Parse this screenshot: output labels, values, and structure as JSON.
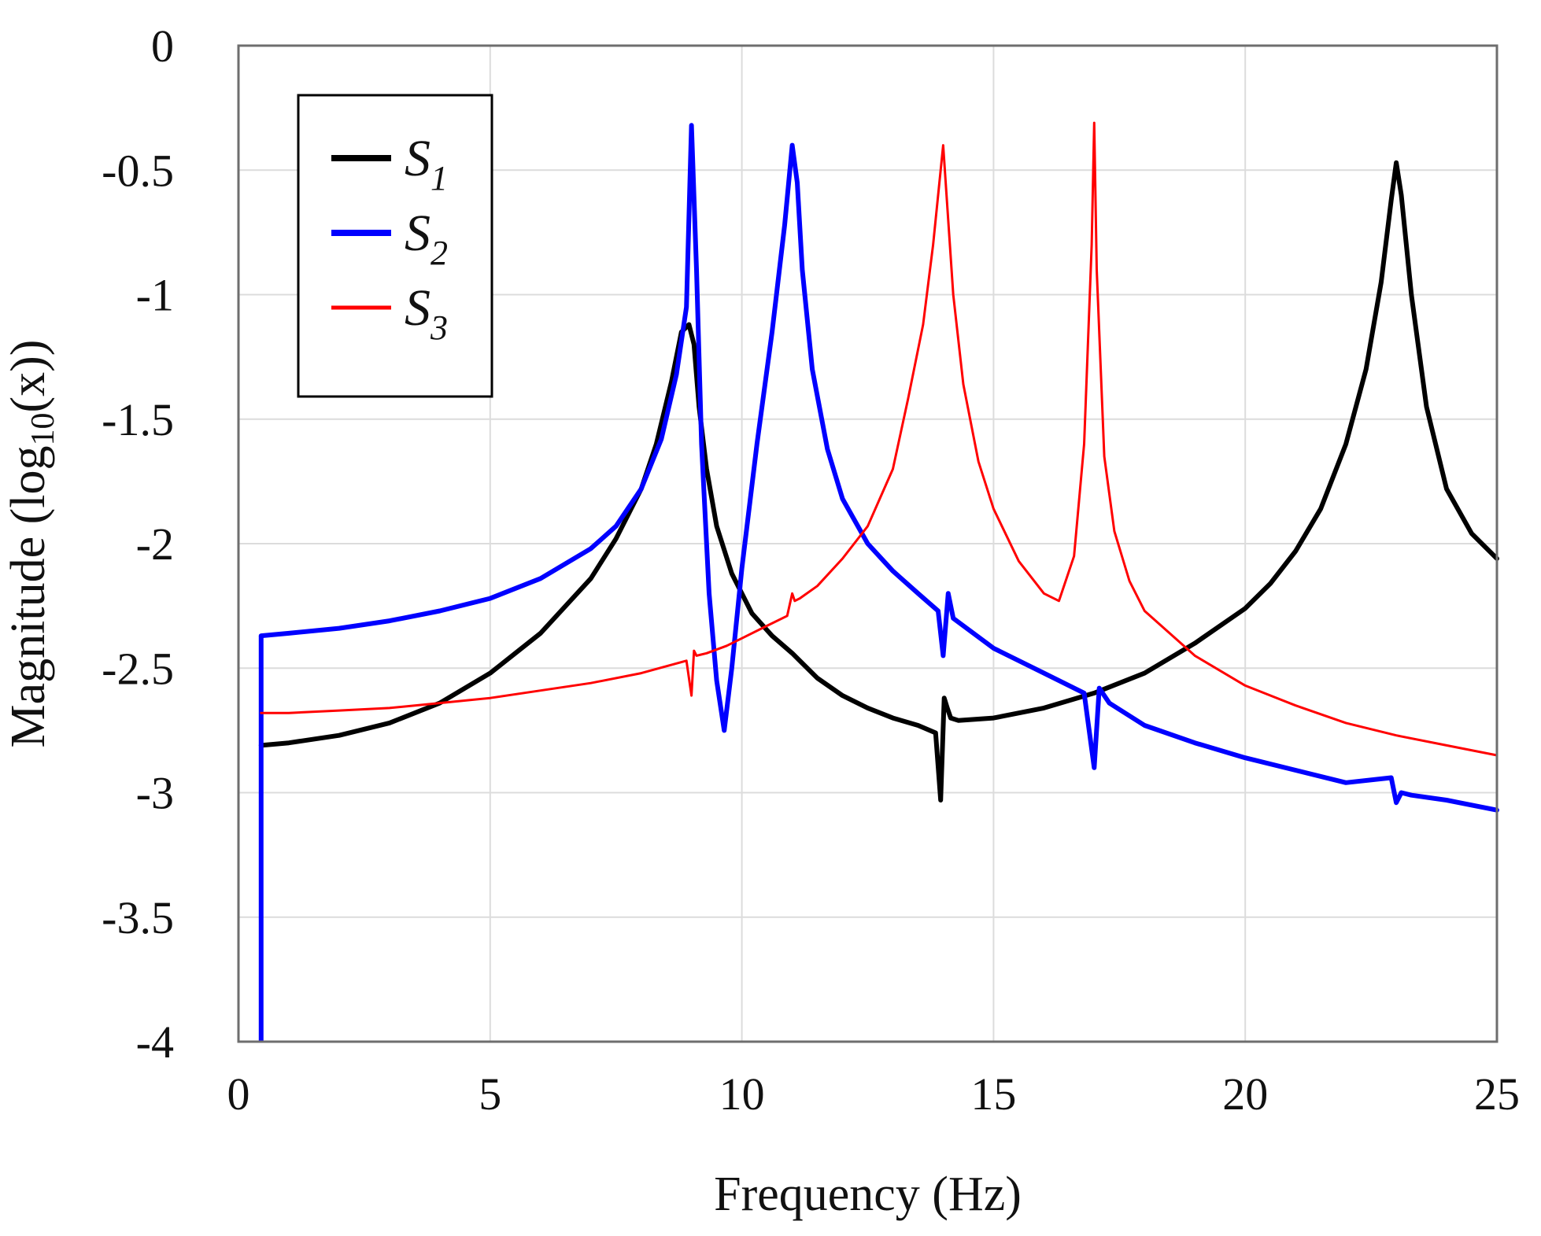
{
  "chart_data": {
    "type": "line",
    "title": "",
    "xlabel": "Frequency (Hz)",
    "ylabel_parts": {
      "prefix": "Magnitude (log",
      "subscript": "10",
      "suffix": "(x))"
    },
    "xlim": [
      0,
      25
    ],
    "ylim": [
      -4,
      0
    ],
    "grid": true,
    "legend_position": "top-left",
    "xticks": [
      0,
      5,
      10,
      15,
      20,
      25
    ],
    "yticks": [
      0,
      -0.5,
      -1,
      -1.5,
      -2,
      -2.5,
      -3,
      -3.5,
      -4
    ],
    "xtick_labels": [
      "0",
      "5",
      "10",
      "15",
      "20",
      "25"
    ],
    "ytick_labels": [
      "0",
      "-0.5",
      "-1",
      "-1.5",
      "-2",
      "-2.5",
      "-3",
      "-3.5",
      "-4"
    ],
    "series": [
      {
        "name": "S",
        "subscript": "1",
        "color": "#000000",
        "line_weight": "thick",
        "x": [
          0.45,
          1,
          2,
          3,
          4,
          5,
          6,
          7,
          7.5,
          8,
          8.3,
          8.6,
          8.8,
          8.95,
          9.05,
          9.15,
          9.3,
          9.5,
          9.8,
          10.2,
          10.6,
          11,
          11.5,
          12,
          12.5,
          13,
          13.5,
          13.85,
          13.95,
          14.02,
          14.08,
          14.15,
          14.3,
          15,
          16,
          17,
          18,
          19,
          20,
          20.5,
          21,
          21.5,
          22,
          22.4,
          22.7,
          22.9,
          23.0,
          23.1,
          23.3,
          23.6,
          24,
          24.5,
          25
        ],
        "y": [
          -2.81,
          -2.8,
          -2.77,
          -2.72,
          -2.64,
          -2.52,
          -2.36,
          -2.14,
          -1.98,
          -1.78,
          -1.6,
          -1.35,
          -1.15,
          -1.12,
          -1.2,
          -1.45,
          -1.7,
          -1.93,
          -2.12,
          -2.28,
          -2.37,
          -2.44,
          -2.54,
          -2.61,
          -2.66,
          -2.7,
          -2.73,
          -2.76,
          -3.03,
          -2.62,
          -2.66,
          -2.7,
          -2.71,
          -2.7,
          -2.66,
          -2.6,
          -2.52,
          -2.4,
          -2.26,
          -2.16,
          -2.03,
          -1.86,
          -1.6,
          -1.3,
          -0.95,
          -0.62,
          -0.47,
          -0.6,
          -1.0,
          -1.45,
          -1.78,
          -1.96,
          -2.06
        ]
      },
      {
        "name": "S",
        "subscript": "2",
        "color": "#0000ff",
        "line_weight": "thick",
        "x": [
          0.45,
          1,
          2,
          3,
          4,
          5,
          6,
          7,
          7.5,
          8,
          8.4,
          8.7,
          8.9,
          9.0,
          9.1,
          9.2,
          9.35,
          9.5,
          9.65,
          9.8,
          10.0,
          10.3,
          10.6,
          10.85,
          11.0,
          11.1,
          11.2,
          11.4,
          11.7,
          12,
          12.5,
          13,
          13.5,
          13.9,
          14.0,
          14.1,
          14.2,
          15,
          16,
          16.8,
          17.0,
          17.1,
          17.3,
          18,
          19,
          20,
          21,
          22,
          22.9,
          23.0,
          23.1,
          23.3,
          24,
          25
        ],
        "y": [
          -2.37,
          -2.36,
          -2.34,
          -2.31,
          -2.27,
          -2.22,
          -2.14,
          -2.02,
          -1.93,
          -1.78,
          -1.58,
          -1.32,
          -1.05,
          -0.32,
          -0.9,
          -1.6,
          -2.2,
          -2.55,
          -2.75,
          -2.5,
          -2.1,
          -1.6,
          -1.15,
          -0.72,
          -0.4,
          -0.55,
          -0.9,
          -1.3,
          -1.62,
          -1.82,
          -2.0,
          -2.11,
          -2.2,
          -2.27,
          -2.45,
          -2.2,
          -2.3,
          -2.42,
          -2.52,
          -2.6,
          -2.9,
          -2.58,
          -2.64,
          -2.73,
          -2.8,
          -2.86,
          -2.91,
          -2.96,
          -2.94,
          -3.04,
          -3.0,
          -3.01,
          -3.03,
          -3.07
        ]
      },
      {
        "name": "S",
        "subscript": "3",
        "color": "#ff0000",
        "line_weight": "thin",
        "x": [
          0.45,
          1,
          2,
          3,
          4,
          5,
          6,
          7,
          8,
          8.9,
          9.0,
          9.05,
          9.1,
          9.3,
          9.7,
          10,
          10.5,
          10.9,
          11.0,
          11.05,
          11.15,
          11.5,
          12,
          12.5,
          13,
          13.3,
          13.6,
          13.8,
          13.95,
          14.0,
          14.05,
          14.2,
          14.4,
          14.7,
          15,
          15.5,
          16,
          16.3,
          16.6,
          16.8,
          16.95,
          17.0,
          17.05,
          17.2,
          17.4,
          17.7,
          18,
          19,
          20,
          21,
          22,
          23,
          24,
          25
        ],
        "y": [
          -2.68,
          -2.68,
          -2.67,
          -2.66,
          -2.64,
          -2.62,
          -2.59,
          -2.56,
          -2.52,
          -2.47,
          -2.61,
          -2.43,
          -2.45,
          -2.44,
          -2.41,
          -2.38,
          -2.33,
          -2.29,
          -2.2,
          -2.23,
          -2.22,
          -2.17,
          -2.06,
          -1.93,
          -1.7,
          -1.42,
          -1.12,
          -0.8,
          -0.5,
          -0.4,
          -0.55,
          -1.0,
          -1.36,
          -1.67,
          -1.86,
          -2.07,
          -2.2,
          -2.23,
          -2.05,
          -1.6,
          -0.8,
          -0.31,
          -0.9,
          -1.65,
          -1.95,
          -2.15,
          -2.27,
          -2.45,
          -2.57,
          -2.65,
          -2.72,
          -2.77,
          -2.81,
          -2.85
        ]
      }
    ]
  }
}
